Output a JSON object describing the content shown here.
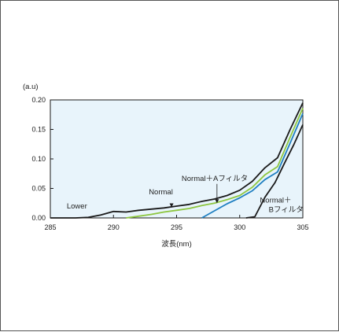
{
  "chart_data": {
    "type": "line",
    "title": "",
    "xlabel": "波長(nm)",
    "ylabel": "(a.u)",
    "xlim": [
      285,
      305
    ],
    "ylim": [
      0,
      0.2
    ],
    "xticks": [
      "285",
      "290",
      "295",
      "300",
      "305"
    ],
    "yticks": [
      "0.00",
      "0.05",
      "0.10",
      "0.15",
      "0.20"
    ],
    "grid": false,
    "plot_background": "#e8f4fb",
    "series": [
      {
        "name": "Lower",
        "color": "#1a1a1a",
        "x": [
          285,
          287,
          288,
          289,
          290,
          291,
          292,
          293,
          294,
          295,
          296,
          297,
          298,
          299,
          300,
          301,
          302,
          303,
          304,
          305
        ],
        "y": [
          0,
          0,
          0.001,
          0.005,
          0.011,
          0.01,
          0.013,
          0.015,
          0.017,
          0.02,
          0.023,
          0.028,
          0.032,
          0.038,
          0.047,
          0.062,
          0.085,
          0.102,
          0.15,
          0.195
        ]
      },
      {
        "name": "Normal",
        "color": "#8dc63f",
        "x": [
          291,
          292,
          293,
          294,
          295,
          296,
          297,
          298,
          299,
          300,
          301,
          302,
          303,
          304,
          305
        ],
        "y": [
          0,
          0.003,
          0.006,
          0.01,
          0.013,
          0.016,
          0.021,
          0.025,
          0.031,
          0.038,
          0.052,
          0.073,
          0.087,
          0.137,
          0.186
        ]
      },
      {
        "name": "Normal＋Aフィルタ",
        "color": "#1f7fc1",
        "x": [
          297,
          298,
          299,
          300,
          301,
          302,
          303,
          304,
          305
        ],
        "y": [
          0,
          0.012,
          0.024,
          0.034,
          0.046,
          0.065,
          0.078,
          0.127,
          0.177
        ]
      },
      {
        "name": "Normal＋Bフィルタ",
        "color": "#1a1a1a",
        "x": [
          300.5,
          301.2,
          302,
          302.8,
          303.6,
          304.3,
          305
        ],
        "y": [
          0,
          0.002,
          0.035,
          0.06,
          0.095,
          0.125,
          0.158
        ]
      }
    ],
    "annotations": [
      {
        "text": "Lower",
        "x": 286.3,
        "y": 0.016
      },
      {
        "text": "Normal",
        "x": 292.8,
        "y": 0.04
      },
      {
        "text": "Normal＋Aフィルタ",
        "x": 295.4,
        "y": 0.063,
        "arrow_to": [
          298.2,
          0.025
        ]
      },
      {
        "text": "Normal＋",
        "x": 301.6,
        "y": 0.026
      },
      {
        "text": "Bフィルタ",
        "x": 302.3,
        "y": 0.01
      }
    ]
  }
}
